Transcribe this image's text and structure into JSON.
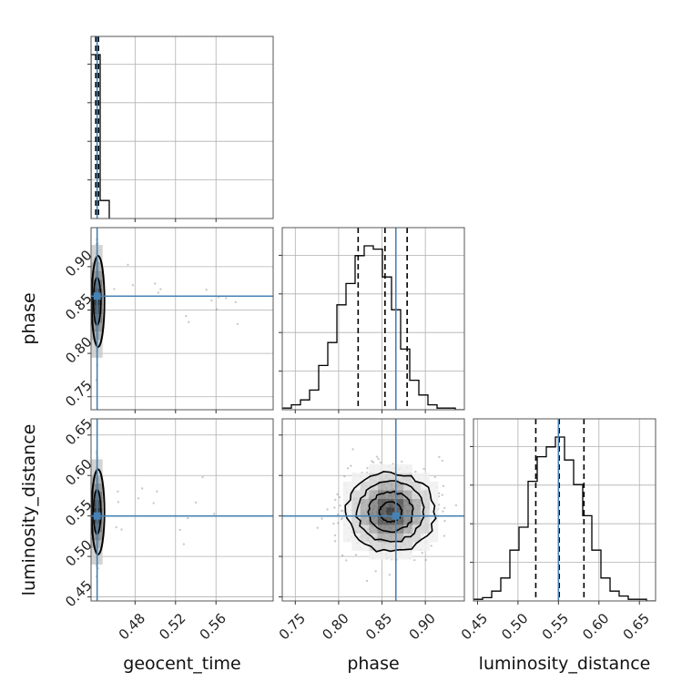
{
  "colors": {
    "truth": "#4682b4",
    "hist": "#000000",
    "grid": "#b0b0b0",
    "density": "#303030"
  },
  "chart_data": {
    "type": "corner",
    "parameters": [
      "geocent_time",
      "phase",
      "luminosity_distance"
    ],
    "truths": {
      "geocent_time": 0.4425,
      "phase": 0.866,
      "luminosity_distance": 0.55
    },
    "ranges": {
      "geocent_time": [
        0.4365,
        0.6165
      ],
      "phase": [
        0.735,
        0.945
      ],
      "luminosity_distance": [
        0.445,
        0.67
      ]
    },
    "ticks": {
      "geocent_time": [
        "0.48",
        "0.52",
        "0.56"
      ],
      "phase": [
        "0.75",
        "0.80",
        "0.85",
        "0.90"
      ],
      "luminosity_distance": [
        "0.45",
        "0.50",
        "0.55",
        "0.60",
        "0.65"
      ]
    },
    "tick_values": {
      "geocent_time": [
        0.48,
        0.52,
        0.56
      ],
      "phase": [
        0.75,
        0.8,
        0.85,
        0.9
      ],
      "luminosity_distance": [
        0.45,
        0.5,
        0.55,
        0.6,
        0.65
      ]
    },
    "quantiles": {
      "geocent_time": [
        0.4418,
        0.4425,
        0.4432
      ],
      "phase": [
        0.8225,
        0.8535,
        0.879
      ],
      "luminosity_distance": [
        0.522,
        0.551,
        0.5815
      ]
    },
    "histograms": {
      "geocent_time": {
        "edges": [
          0.4365,
          0.4455,
          0.4545
        ],
        "counts": [
          1.0,
          0.11
        ]
      },
      "phase": {
        "edges": [
          0.735,
          0.7455,
          0.756,
          0.7665,
          0.777,
          0.7875,
          0.798,
          0.8085,
          0.819,
          0.8295,
          0.84,
          0.8505,
          0.861,
          0.8715,
          0.882,
          0.8925,
          0.903,
          0.9135,
          0.924,
          0.9345,
          0.945
        ],
        "counts": [
          0.01,
          0.03,
          0.06,
          0.12,
          0.27,
          0.41,
          0.64,
          0.77,
          0.94,
          1.0,
          0.98,
          0.81,
          0.61,
          0.37,
          0.18,
          0.09,
          0.03,
          0.01,
          0.01,
          0.0
        ]
      },
      "luminosity_distance": {
        "edges": [
          0.445,
          0.45625,
          0.4675,
          0.47875,
          0.49,
          0.50125,
          0.5125,
          0.52375,
          0.535,
          0.54625,
          0.5575,
          0.56875,
          0.58,
          0.59125,
          0.6025,
          0.61375,
          0.625,
          0.63625,
          0.6475,
          0.65875,
          0.67
        ],
        "counts": [
          0.01,
          0.02,
          0.06,
          0.14,
          0.31,
          0.45,
          0.73,
          0.88,
          0.94,
          1.0,
          0.86,
          0.71,
          0.52,
          0.31,
          0.14,
          0.06,
          0.03,
          0.01,
          0.01,
          0.0
        ]
      }
    },
    "density_2d": {
      "phase_vs_luminosity_distance": {
        "center": [
          0.86,
          0.555
        ],
        "sigma": [
          0.025,
          0.025
        ],
        "contour_levels": [
          0.5,
          1.0,
          1.5,
          2.0
        ]
      },
      "geocent_time_vs_phase": {
        "center": [
          0.4425,
          0.86
        ],
        "sigma": [
          0.0005,
          0.025
        ]
      },
      "geocent_time_vs_luminosity_distance": {
        "center": [
          0.4425,
          0.555
        ],
        "sigma": [
          0.0005,
          0.025
        ]
      }
    },
    "xlabels": [
      "geocent_time",
      "phase",
      "luminosity_distance"
    ],
    "ylabels": [
      "",
      "phase",
      "luminosity_distance"
    ],
    "grid": true
  }
}
